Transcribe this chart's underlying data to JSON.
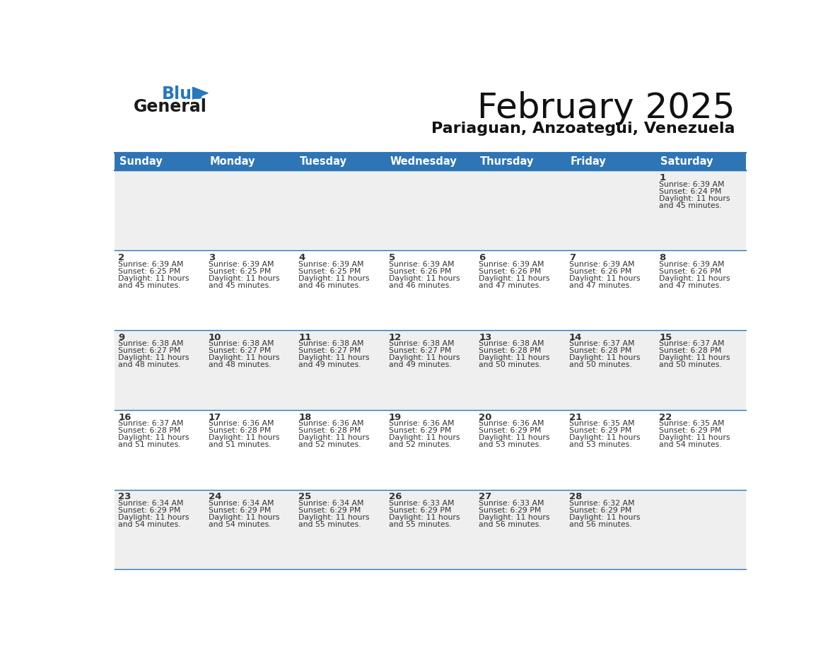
{
  "title": "February 2025",
  "subtitle": "Pariaguan, Anzoategui, Venezuela",
  "header_bg": "#2E75B6",
  "header_text": "#FFFFFF",
  "cell_bg_odd": "#EFEFEF",
  "cell_bg_even": "#FFFFFF",
  "border_color": "#2E75B6",
  "text_color": "#333333",
  "day_headers": [
    "Sunday",
    "Monday",
    "Tuesday",
    "Wednesday",
    "Thursday",
    "Friday",
    "Saturday"
  ],
  "calendar": [
    [
      null,
      null,
      null,
      null,
      null,
      null,
      {
        "day": "1",
        "sunrise": "6:39 AM",
        "sunset": "6:24 PM",
        "daylight": "11 hours\nand 45 minutes."
      }
    ],
    [
      {
        "day": "2",
        "sunrise": "6:39 AM",
        "sunset": "6:25 PM",
        "daylight": "11 hours\nand 45 minutes."
      },
      {
        "day": "3",
        "sunrise": "6:39 AM",
        "sunset": "6:25 PM",
        "daylight": "11 hours\nand 45 minutes."
      },
      {
        "day": "4",
        "sunrise": "6:39 AM",
        "sunset": "6:25 PM",
        "daylight": "11 hours\nand 46 minutes."
      },
      {
        "day": "5",
        "sunrise": "6:39 AM",
        "sunset": "6:26 PM",
        "daylight": "11 hours\nand 46 minutes."
      },
      {
        "day": "6",
        "sunrise": "6:39 AM",
        "sunset": "6:26 PM",
        "daylight": "11 hours\nand 47 minutes."
      },
      {
        "day": "7",
        "sunrise": "6:39 AM",
        "sunset": "6:26 PM",
        "daylight": "11 hours\nand 47 minutes."
      },
      {
        "day": "8",
        "sunrise": "6:39 AM",
        "sunset": "6:26 PM",
        "daylight": "11 hours\nand 47 minutes."
      }
    ],
    [
      {
        "day": "9",
        "sunrise": "6:38 AM",
        "sunset": "6:27 PM",
        "daylight": "11 hours\nand 48 minutes."
      },
      {
        "day": "10",
        "sunrise": "6:38 AM",
        "sunset": "6:27 PM",
        "daylight": "11 hours\nand 48 minutes."
      },
      {
        "day": "11",
        "sunrise": "6:38 AM",
        "sunset": "6:27 PM",
        "daylight": "11 hours\nand 49 minutes."
      },
      {
        "day": "12",
        "sunrise": "6:38 AM",
        "sunset": "6:27 PM",
        "daylight": "11 hours\nand 49 minutes."
      },
      {
        "day": "13",
        "sunrise": "6:38 AM",
        "sunset": "6:28 PM",
        "daylight": "11 hours\nand 50 minutes."
      },
      {
        "day": "14",
        "sunrise": "6:37 AM",
        "sunset": "6:28 PM",
        "daylight": "11 hours\nand 50 minutes."
      },
      {
        "day": "15",
        "sunrise": "6:37 AM",
        "sunset": "6:28 PM",
        "daylight": "11 hours\nand 50 minutes."
      }
    ],
    [
      {
        "day": "16",
        "sunrise": "6:37 AM",
        "sunset": "6:28 PM",
        "daylight": "11 hours\nand 51 minutes."
      },
      {
        "day": "17",
        "sunrise": "6:36 AM",
        "sunset": "6:28 PM",
        "daylight": "11 hours\nand 51 minutes."
      },
      {
        "day": "18",
        "sunrise": "6:36 AM",
        "sunset": "6:28 PM",
        "daylight": "11 hours\nand 52 minutes."
      },
      {
        "day": "19",
        "sunrise": "6:36 AM",
        "sunset": "6:29 PM",
        "daylight": "11 hours\nand 52 minutes."
      },
      {
        "day": "20",
        "sunrise": "6:36 AM",
        "sunset": "6:29 PM",
        "daylight": "11 hours\nand 53 minutes."
      },
      {
        "day": "21",
        "sunrise": "6:35 AM",
        "sunset": "6:29 PM",
        "daylight": "11 hours\nand 53 minutes."
      },
      {
        "day": "22",
        "sunrise": "6:35 AM",
        "sunset": "6:29 PM",
        "daylight": "11 hours\nand 54 minutes."
      }
    ],
    [
      {
        "day": "23",
        "sunrise": "6:34 AM",
        "sunset": "6:29 PM",
        "daylight": "11 hours\nand 54 minutes."
      },
      {
        "day": "24",
        "sunrise": "6:34 AM",
        "sunset": "6:29 PM",
        "daylight": "11 hours\nand 54 minutes."
      },
      {
        "day": "25",
        "sunrise": "6:34 AM",
        "sunset": "6:29 PM",
        "daylight": "11 hours\nand 55 minutes."
      },
      {
        "day": "26",
        "sunrise": "6:33 AM",
        "sunset": "6:29 PM",
        "daylight": "11 hours\nand 55 minutes."
      },
      {
        "day": "27",
        "sunrise": "6:33 AM",
        "sunset": "6:29 PM",
        "daylight": "11 hours\nand 56 minutes."
      },
      {
        "day": "28",
        "sunrise": "6:32 AM",
        "sunset": "6:29 PM",
        "daylight": "11 hours\nand 56 minutes."
      },
      null
    ]
  ],
  "logo_general_color": "#1a1a1a",
  "logo_blue_color": "#2878BE",
  "logo_triangle_color": "#2878BE",
  "fig_width": 11.88,
  "fig_height": 9.18,
  "dpi": 100
}
